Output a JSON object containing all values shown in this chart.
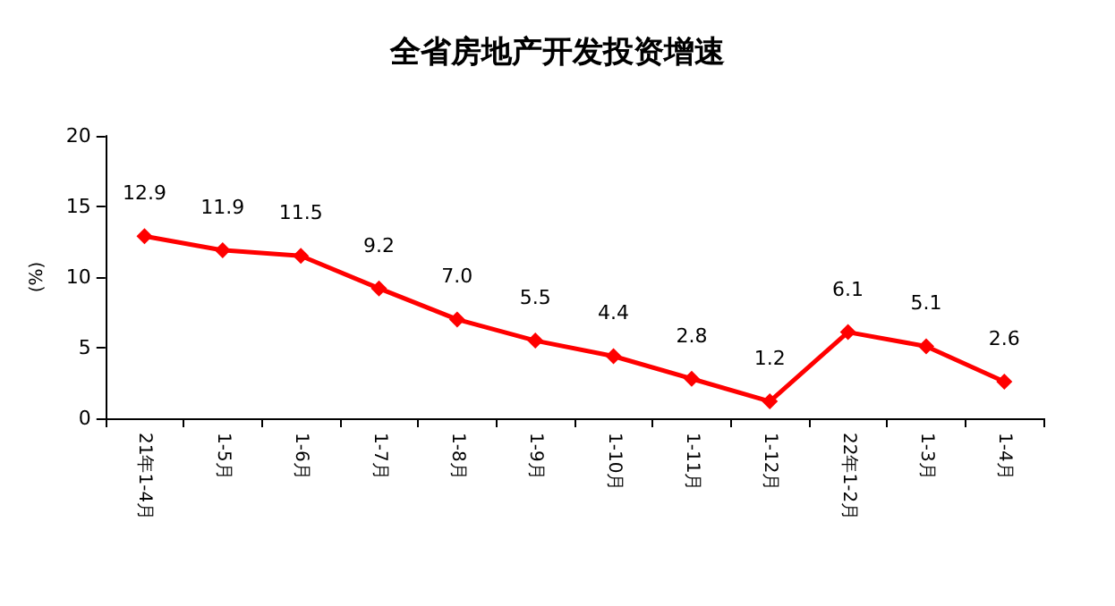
{
  "chart_data": {
    "type": "line",
    "title": "全省房地产开发投资增速",
    "ylabel": "(%)",
    "categories": [
      "21年1-4月",
      "1-5月",
      "1-6月",
      "1-7月",
      "1-8月",
      "1-9月",
      "1-10月",
      "1-11月",
      "1-12月",
      "22年1-2月",
      "1-3月",
      "1-4月"
    ],
    "series": [
      {
        "color": "#ff0000",
        "values": [
          12.9,
          11.9,
          11.5,
          9.2,
          7.0,
          5.5,
          4.4,
          2.8,
          1.2,
          6.1,
          5.1,
          2.6
        ],
        "value_labels": [
          "12.9",
          "11.9",
          "11.5",
          "9.2",
          "7.0",
          "5.5",
          "4.4",
          "2.8",
          "1.2",
          "6.1",
          "5.1",
          "2.6"
        ]
      }
    ],
    "ylim": [
      0,
      20
    ],
    "yticks": [
      0,
      5,
      10,
      15,
      20
    ],
    "grid": false,
    "marker": "diamond",
    "line_style": "solid"
  }
}
